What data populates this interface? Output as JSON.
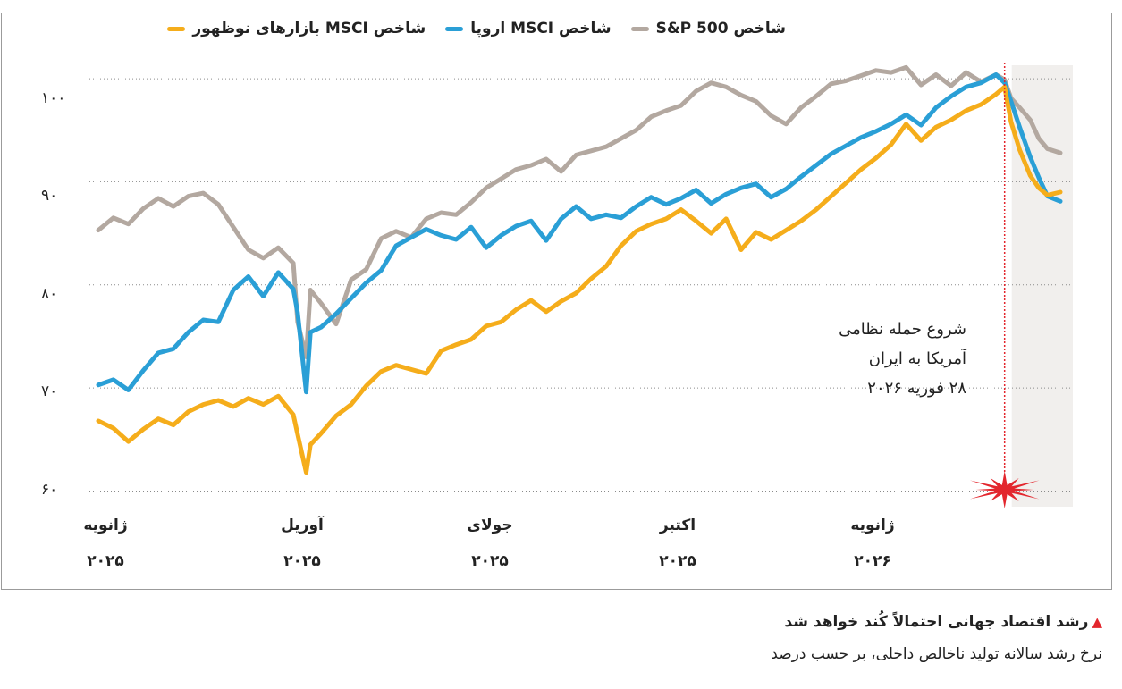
{
  "chart_data": {
    "type": "line",
    "title": "",
    "xlabel": "",
    "ylabel": "",
    "ylim": [
      59,
      102
    ],
    "x_range": [
      "2025-01-01",
      "2026-03-26"
    ],
    "yticks": [
      "۱۰۰",
      "۹۰",
      "۸۰",
      "۷۰",
      "۶۰"
    ],
    "ytick_values": [
      100,
      90,
      80,
      70,
      60
    ],
    "xticks": [
      {
        "label": "ژانویه",
        "year": "۲۰۲۵",
        "date": "2025-01-01"
      },
      {
        "label": "آوریل",
        "year": "۲۰۲۵",
        "date": "2025-04-01"
      },
      {
        "label": "جولای",
        "year": "۲۰۲۵",
        "date": "2025-07-01"
      },
      {
        "label": "اکتبر",
        "year": "۲۰۲۵",
        "date": "2025-10-01"
      },
      {
        "label": "ژانویه",
        "year": "۲۰۲۶",
        "date": "2026-01-01"
      }
    ],
    "grid": true,
    "legend_position": "top",
    "series": [
      {
        "name": "شاخص S&P 500",
        "color": "#b3a8a0",
        "points": [
          [
            "2025-01-01",
            85.3
          ],
          [
            "2025-01-08",
            86.5
          ],
          [
            "2025-01-15",
            85.9
          ],
          [
            "2025-01-22",
            87.4
          ],
          [
            "2025-01-29",
            88.4
          ],
          [
            "2025-02-05",
            87.6
          ],
          [
            "2025-02-12",
            88.6
          ],
          [
            "2025-02-19",
            88.9
          ],
          [
            "2025-02-26",
            87.8
          ],
          [
            "2025-03-05",
            85.6
          ],
          [
            "2025-03-12",
            83.4
          ],
          [
            "2025-03-19",
            82.6
          ],
          [
            "2025-03-26",
            83.6
          ],
          [
            "2025-04-02",
            82.1
          ],
          [
            "2025-04-04",
            76.4
          ],
          [
            "2025-04-08",
            73.0
          ],
          [
            "2025-04-10",
            79.5
          ],
          [
            "2025-04-15",
            78.2
          ],
          [
            "2025-04-22",
            76.2
          ],
          [
            "2025-04-29",
            80.5
          ],
          [
            "2025-05-06",
            81.5
          ],
          [
            "2025-05-13",
            84.5
          ],
          [
            "2025-05-20",
            85.2
          ],
          [
            "2025-05-27",
            84.6
          ],
          [
            "2025-06-03",
            86.4
          ],
          [
            "2025-06-10",
            87.0
          ],
          [
            "2025-06-17",
            86.8
          ],
          [
            "2025-06-24",
            88.0
          ],
          [
            "2025-07-01",
            89.4
          ],
          [
            "2025-07-08",
            90.3
          ],
          [
            "2025-07-15",
            91.2
          ],
          [
            "2025-07-22",
            91.6
          ],
          [
            "2025-07-29",
            92.2
          ],
          [
            "2025-08-05",
            91.0
          ],
          [
            "2025-08-12",
            92.6
          ],
          [
            "2025-08-19",
            93.0
          ],
          [
            "2025-08-26",
            93.4
          ],
          [
            "2025-09-02",
            94.2
          ],
          [
            "2025-09-09",
            95.0
          ],
          [
            "2025-09-16",
            96.3
          ],
          [
            "2025-09-23",
            96.9
          ],
          [
            "2025-09-30",
            97.4
          ],
          [
            "2025-10-07",
            98.8
          ],
          [
            "2025-10-14",
            99.6
          ],
          [
            "2025-10-21",
            99.2
          ],
          [
            "2025-10-28",
            98.4
          ],
          [
            "2025-11-04",
            97.8
          ],
          [
            "2025-11-11",
            96.4
          ],
          [
            "2025-11-18",
            95.6
          ],
          [
            "2025-11-25",
            97.2
          ],
          [
            "2025-12-02",
            98.3
          ],
          [
            "2025-12-09",
            99.5
          ],
          [
            "2025-12-16",
            99.8
          ],
          [
            "2025-12-23",
            100.3
          ],
          [
            "2025-12-30",
            100.8
          ],
          [
            "2026-01-06",
            100.6
          ],
          [
            "2026-01-13",
            101.1
          ],
          [
            "2026-01-20",
            99.4
          ],
          [
            "2026-01-27",
            100.4
          ],
          [
            "2026-02-03",
            99.3
          ],
          [
            "2026-02-10",
            100.6
          ],
          [
            "2026-02-17",
            99.7
          ],
          [
            "2026-02-24",
            100.4
          ],
          [
            "2026-02-28",
            99.9
          ],
          [
            "2026-03-03",
            98.1
          ],
          [
            "2026-03-07",
            97.2
          ],
          [
            "2026-03-12",
            96.0
          ],
          [
            "2026-03-16",
            94.2
          ],
          [
            "2026-03-20",
            93.2
          ],
          [
            "2026-03-26",
            92.8
          ]
        ]
      },
      {
        "name": "شاخص MSCI اروپا",
        "color": "#2a9fd6",
        "points": [
          [
            "2025-01-01",
            70.3
          ],
          [
            "2025-01-08",
            70.8
          ],
          [
            "2025-01-15",
            69.8
          ],
          [
            "2025-01-22",
            71.7
          ],
          [
            "2025-01-29",
            73.4
          ],
          [
            "2025-02-05",
            73.8
          ],
          [
            "2025-02-12",
            75.4
          ],
          [
            "2025-02-19",
            76.6
          ],
          [
            "2025-02-26",
            76.4
          ],
          [
            "2025-03-05",
            79.5
          ],
          [
            "2025-03-12",
            80.8
          ],
          [
            "2025-03-19",
            78.9
          ],
          [
            "2025-03-26",
            81.2
          ],
          [
            "2025-04-02",
            79.6
          ],
          [
            "2025-04-04",
            77.3
          ],
          [
            "2025-04-08",
            69.6
          ],
          [
            "2025-04-10",
            75.4
          ],
          [
            "2025-04-15",
            75.9
          ],
          [
            "2025-04-22",
            77.2
          ],
          [
            "2025-04-29",
            78.7
          ],
          [
            "2025-05-06",
            80.2
          ],
          [
            "2025-05-13",
            81.4
          ],
          [
            "2025-05-20",
            83.8
          ],
          [
            "2025-05-27",
            84.6
          ],
          [
            "2025-06-03",
            85.4
          ],
          [
            "2025-06-10",
            84.8
          ],
          [
            "2025-06-17",
            84.4
          ],
          [
            "2025-06-24",
            85.6
          ],
          [
            "2025-07-01",
            83.6
          ],
          [
            "2025-07-08",
            84.8
          ],
          [
            "2025-07-15",
            85.7
          ],
          [
            "2025-07-22",
            86.2
          ],
          [
            "2025-07-29",
            84.3
          ],
          [
            "2025-08-05",
            86.4
          ],
          [
            "2025-08-12",
            87.6
          ],
          [
            "2025-08-19",
            86.4
          ],
          [
            "2025-08-26",
            86.8
          ],
          [
            "2025-09-02",
            86.5
          ],
          [
            "2025-09-09",
            87.6
          ],
          [
            "2025-09-16",
            88.5
          ],
          [
            "2025-09-23",
            87.8
          ],
          [
            "2025-09-30",
            88.4
          ],
          [
            "2025-10-07",
            89.2
          ],
          [
            "2025-10-14",
            87.9
          ],
          [
            "2025-10-21",
            88.8
          ],
          [
            "2025-10-28",
            89.4
          ],
          [
            "2025-11-04",
            89.8
          ],
          [
            "2025-11-11",
            88.5
          ],
          [
            "2025-11-18",
            89.3
          ],
          [
            "2025-11-25",
            90.5
          ],
          [
            "2025-12-02",
            91.6
          ],
          [
            "2025-12-09",
            92.7
          ],
          [
            "2025-12-16",
            93.5
          ],
          [
            "2025-12-23",
            94.3
          ],
          [
            "2025-12-30",
            94.9
          ],
          [
            "2026-01-06",
            95.6
          ],
          [
            "2026-01-13",
            96.5
          ],
          [
            "2026-01-20",
            95.5
          ],
          [
            "2026-01-27",
            97.2
          ],
          [
            "2026-02-03",
            98.3
          ],
          [
            "2026-02-10",
            99.2
          ],
          [
            "2026-02-17",
            99.6
          ],
          [
            "2026-02-24",
            100.4
          ],
          [
            "2026-02-28",
            99.6
          ],
          [
            "2026-03-03",
            97.8
          ],
          [
            "2026-03-07",
            95.3
          ],
          [
            "2026-03-12",
            92.4
          ],
          [
            "2026-03-16",
            90.4
          ],
          [
            "2026-03-20",
            88.6
          ],
          [
            "2026-03-26",
            88.1
          ]
        ]
      },
      {
        "name": "شاخص MSCI بازارهای نوظهور",
        "color": "#f5ad1b",
        "points": [
          [
            "2025-01-01",
            66.8
          ],
          [
            "2025-01-08",
            66.1
          ],
          [
            "2025-01-15",
            64.8
          ],
          [
            "2025-01-22",
            66.0
          ],
          [
            "2025-01-29",
            67.0
          ],
          [
            "2025-02-05",
            66.4
          ],
          [
            "2025-02-12",
            67.7
          ],
          [
            "2025-02-19",
            68.4
          ],
          [
            "2025-02-26",
            68.8
          ],
          [
            "2025-03-05",
            68.2
          ],
          [
            "2025-03-12",
            69.0
          ],
          [
            "2025-03-19",
            68.4
          ],
          [
            "2025-03-26",
            69.2
          ],
          [
            "2025-04-02",
            67.4
          ],
          [
            "2025-04-04",
            65.5
          ],
          [
            "2025-04-08",
            61.8
          ],
          [
            "2025-04-10",
            64.5
          ],
          [
            "2025-04-15",
            65.6
          ],
          [
            "2025-04-22",
            67.3
          ],
          [
            "2025-04-29",
            68.4
          ],
          [
            "2025-05-06",
            70.2
          ],
          [
            "2025-05-13",
            71.6
          ],
          [
            "2025-05-20",
            72.2
          ],
          [
            "2025-05-27",
            71.8
          ],
          [
            "2025-06-03",
            71.4
          ],
          [
            "2025-06-10",
            73.6
          ],
          [
            "2025-06-17",
            74.2
          ],
          [
            "2025-06-24",
            74.7
          ],
          [
            "2025-07-01",
            76.0
          ],
          [
            "2025-07-08",
            76.4
          ],
          [
            "2025-07-15",
            77.6
          ],
          [
            "2025-07-22",
            78.5
          ],
          [
            "2025-07-29",
            77.4
          ],
          [
            "2025-08-05",
            78.4
          ],
          [
            "2025-08-12",
            79.2
          ],
          [
            "2025-08-19",
            80.6
          ],
          [
            "2025-08-26",
            81.8
          ],
          [
            "2025-09-02",
            83.8
          ],
          [
            "2025-09-09",
            85.2
          ],
          [
            "2025-09-16",
            85.9
          ],
          [
            "2025-09-23",
            86.4
          ],
          [
            "2025-09-30",
            87.3
          ],
          [
            "2025-10-07",
            86.2
          ],
          [
            "2025-10-14",
            85.0
          ],
          [
            "2025-10-21",
            86.4
          ],
          [
            "2025-10-28",
            83.4
          ],
          [
            "2025-11-04",
            85.1
          ],
          [
            "2025-11-11",
            84.4
          ],
          [
            "2025-11-18",
            85.3
          ],
          [
            "2025-11-25",
            86.2
          ],
          [
            "2025-12-02",
            87.3
          ],
          [
            "2025-12-09",
            88.6
          ],
          [
            "2025-12-16",
            89.9
          ],
          [
            "2025-12-23",
            91.2
          ],
          [
            "2025-12-30",
            92.3
          ],
          [
            "2026-01-06",
            93.6
          ],
          [
            "2026-01-13",
            95.6
          ],
          [
            "2026-01-20",
            94.0
          ],
          [
            "2026-01-27",
            95.3
          ],
          [
            "2026-02-03",
            96.0
          ],
          [
            "2026-02-10",
            96.9
          ],
          [
            "2026-02-17",
            97.5
          ],
          [
            "2026-02-24",
            98.5
          ],
          [
            "2026-02-28",
            99.2
          ],
          [
            "2026-03-03",
            95.8
          ],
          [
            "2026-03-07",
            93.1
          ],
          [
            "2026-03-12",
            90.6
          ],
          [
            "2026-03-16",
            89.4
          ],
          [
            "2026-03-20",
            88.7
          ],
          [
            "2026-03-26",
            89.0
          ]
        ]
      }
    ],
    "event": {
      "date": "2026-02-28",
      "label_lines": [
        "شروع حمله نظامی",
        "آمریکا به ایران",
        "۲۸ فوریه ۲۰۲۶"
      ],
      "marker": "explosion-icon",
      "line_color": "#e3262d",
      "shade_color": "#f1efed"
    }
  },
  "footer": {
    "headline": "رشد اقتصاد جهانی احتمالاً کُند خواهد شد",
    "subtitle": "نرخ رشد سالانه تولید ناخالص داخلی، بر حسب درصد",
    "marker_color": "#e3262d"
  }
}
